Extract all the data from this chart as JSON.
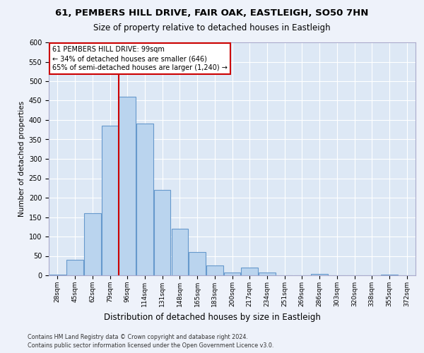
{
  "title_line1": "61, PEMBERS HILL DRIVE, FAIR OAK, EASTLEIGH, SO50 7HN",
  "title_line2": "Size of property relative to detached houses in Eastleigh",
  "xlabel": "Distribution of detached houses by size in Eastleigh",
  "ylabel": "Number of detached properties",
  "categories": [
    "28sqm",
    "45sqm",
    "62sqm",
    "79sqm",
    "96sqm",
    "114sqm",
    "131sqm",
    "148sqm",
    "165sqm",
    "183sqm",
    "200sqm",
    "217sqm",
    "234sqm",
    "251sqm",
    "269sqm",
    "286sqm",
    "303sqm",
    "320sqm",
    "338sqm",
    "355sqm",
    "372sqm"
  ],
  "values": [
    2,
    40,
    160,
    385,
    460,
    390,
    220,
    120,
    60,
    25,
    8,
    20,
    7,
    0,
    0,
    3,
    0,
    0,
    0,
    1,
    0
  ],
  "bar_color": "#bad4ee",
  "bar_edge_color": "#6699cc",
  "red_line_x": 3.5,
  "annotation_text": "61 PEMBERS HILL DRIVE: 99sqm\n← 34% of detached houses are smaller (646)\n65% of semi-detached houses are larger (1,240) →",
  "annotation_box_color": "#ffffff",
  "annotation_box_edge": "#cc0000",
  "red_line_color": "#cc0000",
  "footer_line1": "Contains HM Land Registry data © Crown copyright and database right 2024.",
  "footer_line2": "Contains public sector information licensed under the Open Government Licence v3.0.",
  "bg_color": "#eef2fa",
  "plot_bg_color": "#dde8f5",
  "grid_color": "#ffffff",
  "ylim": [
    0,
    600
  ],
  "yticks": [
    0,
    50,
    100,
    150,
    200,
    250,
    300,
    350,
    400,
    450,
    500,
    550,
    600
  ]
}
